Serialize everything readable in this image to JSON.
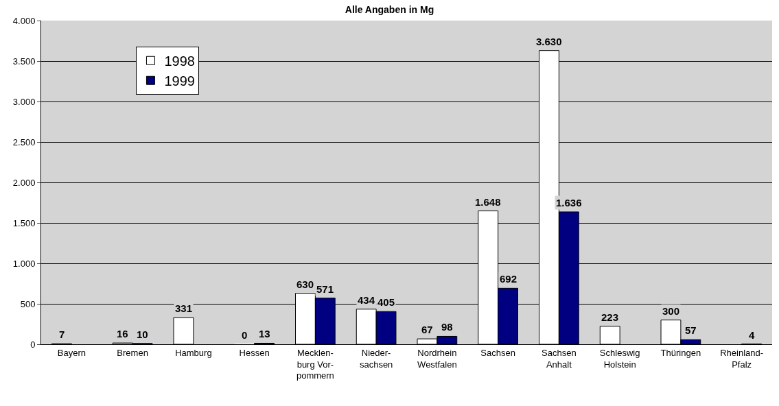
{
  "chart_data": {
    "type": "bar",
    "title": "Alle Angaben in Mg",
    "categories": [
      "Bayern",
      "Bremen",
      "Hamburg",
      "Hessen",
      "Mecklen-\nburg Vor-\npommern",
      "Nieder-\nsachsen",
      "Nordrhein\nWestfalen",
      "Sachsen",
      "Sachsen\nAnhalt",
      "Schleswig\nHolstein",
      "Thüringen",
      "Rheinland-\nPfalz"
    ],
    "series": [
      {
        "name": "1998",
        "color": "#ffffff",
        "values": [
          7,
          16,
          331,
          0,
          630,
          434,
          67,
          1648,
          3630,
          223,
          300,
          null
        ],
        "value_labels": [
          "7",
          "16",
          "331",
          "0",
          "630",
          "434",
          "67",
          "1.648",
          "3.630",
          "223",
          "300",
          null
        ]
      },
      {
        "name": "1999",
        "color": "#000080",
        "values": [
          null,
          10,
          null,
          13,
          571,
          405,
          98,
          692,
          1636,
          null,
          57,
          4
        ],
        "value_labels": [
          null,
          "10",
          null,
          "13",
          "571",
          "405",
          "98",
          "692",
          "1.636",
          null,
          "57",
          "4"
        ]
      }
    ],
    "ylim": [
      0,
      4000
    ],
    "yticks": [
      0,
      {
        "value": 500,
        "label": "500"
      },
      {
        "value": 1000,
        "label": "1.000"
      },
      {
        "value": 1500,
        "label": "1.500"
      },
      {
        "value": 2000,
        "label": "2.000"
      },
      {
        "value": 2500,
        "label": "2.500"
      },
      {
        "value": 3000,
        "label": "3.000"
      },
      {
        "value": 3500,
        "label": "3.500"
      },
      {
        "value": 4000,
        "label": "4.000"
      }
    ],
    "grid": "y",
    "legend": "top left"
  }
}
